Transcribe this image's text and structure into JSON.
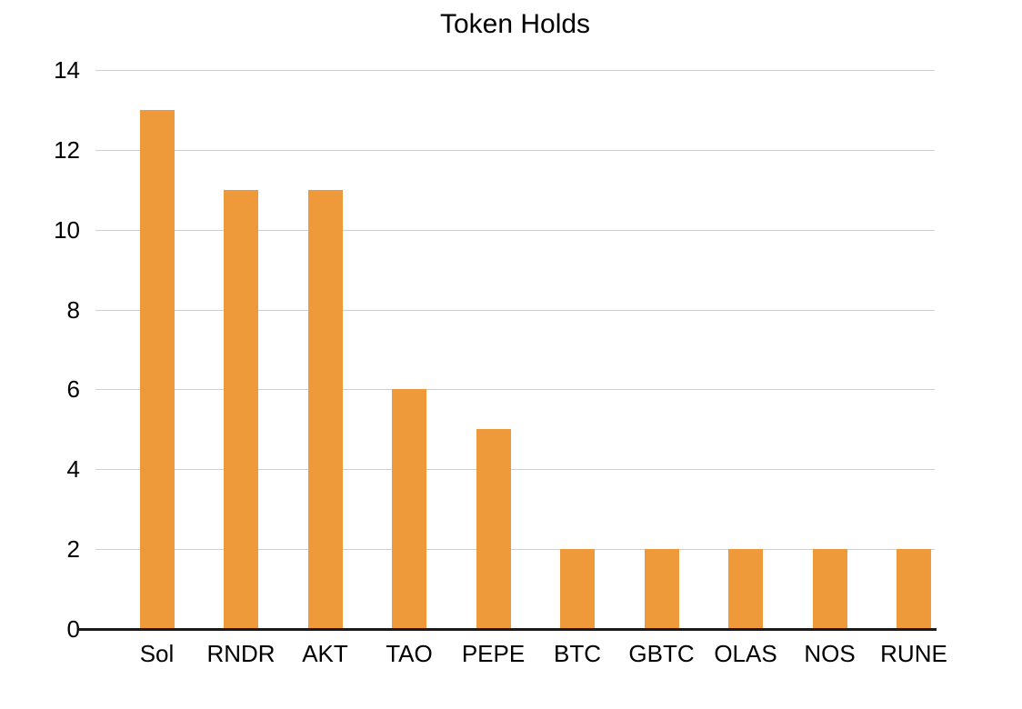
{
  "chart_data": {
    "type": "bar",
    "title": "Token Holds",
    "categories": [
      "Sol",
      "RNDR",
      "AKT",
      "TAO",
      "PEPE",
      "BTC",
      "GBTC",
      "OLAS",
      "NOS",
      "RUNE"
    ],
    "values": [
      13,
      11,
      11,
      6,
      5,
      2,
      2,
      2,
      2,
      2
    ],
    "xlabel": "",
    "ylabel": "",
    "ylim": [
      0,
      14
    ],
    "yticks": [
      0,
      2,
      4,
      6,
      8,
      10,
      12,
      14
    ],
    "grid": true,
    "legend": false,
    "bar_color": "#EE9A3B",
    "gridline_color": "#CFCFCF",
    "axis_color": "#1A1A1A",
    "label_color": "#000000",
    "background_color": "#FFFFFF"
  }
}
